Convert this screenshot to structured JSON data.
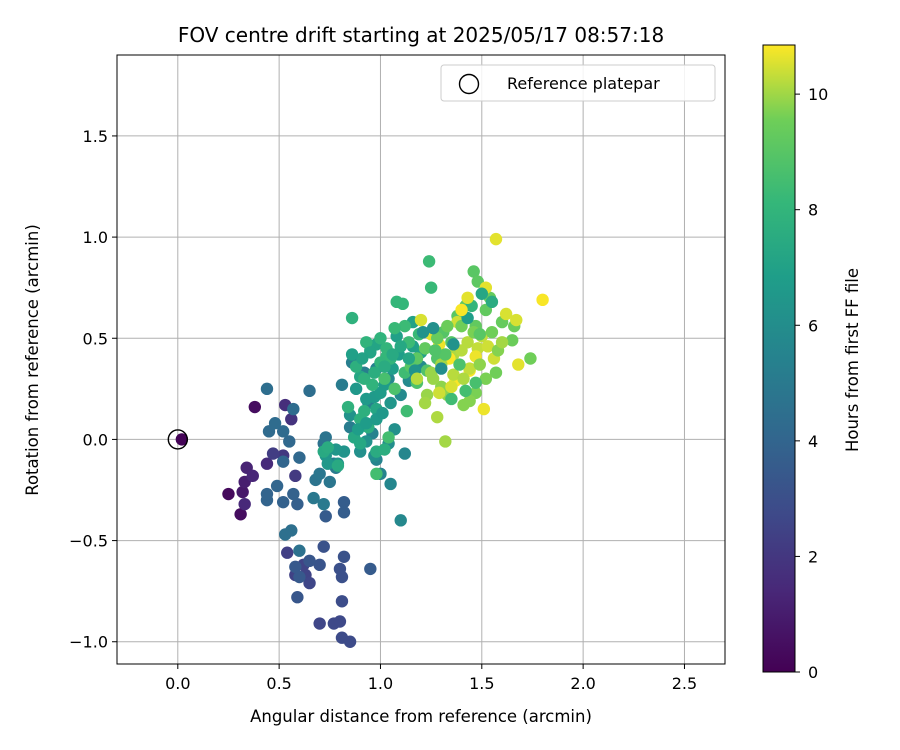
{
  "chart_data": {
    "type": "scatter",
    "title": "FOV centre drift starting at 2025/05/17 08:57:18",
    "xlabel": "Angular distance from reference (arcmin)",
    "ylabel": "Rotation from reference (arcmin)",
    "xlim": [
      -0.3,
      2.7
    ],
    "ylim": [
      -1.11,
      1.9
    ],
    "xticks": [
      "0.0",
      "0.5",
      "1.0",
      "1.5",
      "2.0",
      "2.5"
    ],
    "xtick_values": [
      0,
      0.5,
      1.0,
      1.5,
      2.0,
      2.5
    ],
    "yticks": [
      "−1.0",
      "−0.5",
      "0.0",
      "0.5",
      "1.0",
      "1.5"
    ],
    "ytick_values": [
      -1.0,
      -0.5,
      0.0,
      0.5,
      1.0,
      1.5
    ],
    "grid": true,
    "legend": {
      "position": "top-right",
      "entries": [
        "Reference platepar"
      ]
    },
    "reference_point": {
      "x": 0.0,
      "y": 0.0
    },
    "colorbar": {
      "label": "Hours from first FF file",
      "range": [
        0,
        10.85
      ],
      "ticks": [
        "0",
        "2",
        "4",
        "6",
        "8",
        "10"
      ],
      "tick_values": [
        0,
        2,
        4,
        6,
        8,
        10
      ],
      "colormap": "viridis"
    },
    "points": [
      [
        0.02,
        0.0,
        0.1
      ],
      [
        0.38,
        0.16,
        0.4
      ],
      [
        0.25,
        -0.27,
        0.3
      ],
      [
        0.31,
        -0.37,
        0.4
      ],
      [
        0.32,
        -0.26,
        0.8
      ],
      [
        0.33,
        -0.21,
        1.0
      ],
      [
        0.34,
        -0.14,
        1.2
      ],
      [
        0.37,
        -0.18,
        1.3
      ],
      [
        0.44,
        -0.12,
        1.5
      ],
      [
        0.33,
        -0.32,
        1.4
      ],
      [
        0.53,
        0.17,
        1.6
      ],
      [
        0.56,
        0.1,
        1.8
      ],
      [
        0.52,
        -0.08,
        2.0
      ],
      [
        0.58,
        -0.18,
        2.1
      ],
      [
        0.47,
        -0.07,
        2.2
      ],
      [
        0.54,
        -0.56,
        2.3
      ],
      [
        0.58,
        -0.67,
        2.4
      ],
      [
        0.62,
        -0.62,
        2.5
      ],
      [
        0.63,
        -0.67,
        2.5
      ],
      [
        0.65,
        -0.71,
        2.6
      ],
      [
        0.7,
        -0.91,
        2.6
      ],
      [
        0.77,
        -0.91,
        2.7
      ],
      [
        0.8,
        -0.9,
        2.7
      ],
      [
        0.81,
        -0.98,
        2.8
      ],
      [
        0.85,
        -1.0,
        2.8
      ],
      [
        0.81,
        -0.8,
        2.9
      ],
      [
        0.81,
        -0.68,
        3.0
      ],
      [
        0.8,
        -0.64,
        3.0
      ],
      [
        0.82,
        -0.58,
        3.1
      ],
      [
        0.72,
        -0.53,
        3.1
      ],
      [
        0.7,
        -0.62,
        3.2
      ],
      [
        0.65,
        -0.6,
        3.3
      ],
      [
        0.59,
        -0.78,
        3.3
      ],
      [
        0.58,
        -0.63,
        3.4
      ],
      [
        0.6,
        -0.68,
        3.4
      ],
      [
        0.95,
        -0.64,
        3.5
      ],
      [
        0.73,
        -0.38,
        3.5
      ],
      [
        0.82,
        -0.36,
        3.6
      ],
      [
        0.82,
        -0.31,
        3.6
      ],
      [
        0.59,
        -0.32,
        3.7
      ],
      [
        0.57,
        -0.27,
        3.8
      ],
      [
        0.52,
        -0.31,
        3.8
      ],
      [
        0.44,
        -0.3,
        3.9
      ],
      [
        0.44,
        -0.27,
        3.9
      ],
      [
        0.49,
        -0.23,
        4.0
      ],
      [
        0.52,
        -0.11,
        4.0
      ],
      [
        0.55,
        -0.01,
        4.1
      ],
      [
        0.6,
        -0.09,
        4.1
      ],
      [
        0.52,
        0.04,
        4.2
      ],
      [
        0.45,
        0.04,
        4.2
      ],
      [
        0.48,
        0.08,
        4.3
      ],
      [
        0.57,
        0.15,
        4.3
      ],
      [
        0.65,
        0.24,
        4.4
      ],
      [
        0.44,
        0.25,
        4.4
      ],
      [
        0.53,
        -0.47,
        4.5
      ],
      [
        0.56,
        -0.45,
        4.5
      ],
      [
        0.6,
        -0.55,
        4.6
      ],
      [
        0.72,
        -0.02,
        4.6
      ],
      [
        0.73,
        0.01,
        4.7
      ],
      [
        0.68,
        -0.2,
        4.7
      ],
      [
        0.7,
        -0.17,
        4.8
      ],
      [
        0.75,
        -0.21,
        4.8
      ],
      [
        0.77,
        -0.12,
        4.9
      ],
      [
        0.67,
        -0.29,
        4.9
      ],
      [
        0.72,
        -0.32,
        5.0
      ],
      [
        0.78,
        -0.14,
        5.0
      ],
      [
        0.85,
        0.06,
        5.1
      ],
      [
        0.81,
        0.27,
        5.1
      ],
      [
        0.86,
        0.38,
        5.2
      ],
      [
        0.92,
        0.33,
        5.2
      ],
      [
        0.98,
        0.35,
        5.3
      ],
      [
        0.94,
        0.18,
        5.3
      ],
      [
        0.96,
        0.03,
        5.4
      ],
      [
        0.98,
        -0.1,
        5.5
      ],
      [
        1.0,
        -0.17,
        5.5
      ],
      [
        1.05,
        -0.22,
        5.6
      ],
      [
        1.12,
        -0.07,
        5.6
      ],
      [
        1.1,
        -0.4,
        5.7
      ],
      [
        1.04,
        0.3,
        5.7
      ],
      [
        1.1,
        0.22,
        5.8
      ],
      [
        1.14,
        0.29,
        5.8
      ],
      [
        1.15,
        0.31,
        5.9
      ],
      [
        1.2,
        0.36,
        5.9
      ],
      [
        0.97,
        -0.08,
        6.0
      ],
      [
        1.04,
        -0.02,
        6.0
      ],
      [
        1.07,
        0.05,
        6.1
      ],
      [
        0.9,
        -0.06,
        6.1
      ],
      [
        0.93,
        -0.01,
        6.2
      ],
      [
        0.85,
        0.12,
        6.2
      ],
      [
        0.82,
        -0.06,
        6.3
      ],
      [
        0.79,
        -0.12,
        6.3
      ],
      [
        0.78,
        -0.05,
        6.4
      ],
      [
        0.73,
        -0.08,
        6.4
      ],
      [
        0.74,
        -0.12,
        6.5
      ],
      [
        0.88,
        0.25,
        6.5
      ],
      [
        0.93,
        0.2,
        6.6
      ],
      [
        0.97,
        0.21,
        6.6
      ],
      [
        1.0,
        0.23,
        6.7
      ],
      [
        1.02,
        0.27,
        6.7
      ],
      [
        1.06,
        0.35,
        6.8
      ],
      [
        1.09,
        0.42,
        6.8
      ],
      [
        1.08,
        0.51,
        6.9
      ],
      [
        1.16,
        0.46,
        6.9
      ],
      [
        1.2,
        0.43,
        7.0
      ],
      [
        1.16,
        0.58,
        7.0
      ],
      [
        0.95,
        0.44,
        7.1
      ],
      [
        0.98,
        0.47,
        7.1
      ],
      [
        0.9,
        0.31,
        7.2
      ],
      [
        0.98,
        0.15,
        7.2
      ],
      [
        0.87,
        0.01,
        7.3
      ],
      [
        0.9,
        -0.02,
        7.3
      ],
      [
        0.79,
        -0.13,
        7.4
      ],
      [
        0.72,
        -0.06,
        7.4
      ],
      [
        0.74,
        -0.04,
        7.5
      ],
      [
        0.98,
        -0.06,
        7.5
      ],
      [
        1.02,
        -0.05,
        7.6
      ],
      [
        0.94,
        0.06,
        7.6
      ],
      [
        0.92,
        0.14,
        7.7
      ],
      [
        0.9,
        0.1,
        7.7
      ],
      [
        0.84,
        0.16,
        7.8
      ],
      [
        0.86,
        0.6,
        7.8
      ],
      [
        0.93,
        0.48,
        7.9
      ],
      [
        1.0,
        0.5,
        7.9
      ],
      [
        1.03,
        0.45,
        8.0
      ],
      [
        1.05,
        0.4,
        8.0
      ],
      [
        1.08,
        0.68,
        8.1
      ],
      [
        1.11,
        0.67,
        8.1
      ],
      [
        1.19,
        0.52,
        8.2
      ],
      [
        1.25,
        0.75,
        8.2
      ],
      [
        1.24,
        0.88,
        8.3
      ],
      [
        1.14,
        0.48,
        8.3
      ],
      [
        1.12,
        0.33,
        8.4
      ],
      [
        1.13,
        0.14,
        8.4
      ],
      [
        1.04,
        0.01,
        8.5
      ],
      [
        0.98,
        -0.17,
        8.5
      ],
      [
        1.02,
        0.3,
        8.6
      ],
      [
        1.07,
        0.25,
        8.7
      ],
      [
        1.18,
        0.28,
        8.7
      ],
      [
        1.23,
        0.34,
        8.8
      ],
      [
        1.28,
        0.4,
        8.8
      ],
      [
        1.31,
        0.53,
        8.9
      ],
      [
        1.35,
        0.48,
        8.9
      ],
      [
        1.38,
        0.61,
        9.0
      ],
      [
        1.46,
        0.83,
        9.0
      ],
      [
        1.48,
        0.78,
        9.1
      ],
      [
        1.42,
        0.66,
        9.1
      ],
      [
        1.47,
        0.56,
        9.2
      ],
      [
        1.52,
        0.64,
        9.2
      ],
      [
        1.54,
        0.7,
        9.3
      ],
      [
        1.6,
        0.58,
        9.3
      ],
      [
        1.65,
        0.49,
        9.4
      ],
      [
        1.66,
        0.56,
        9.4
      ],
      [
        1.74,
        0.4,
        9.5
      ],
      [
        1.57,
        0.33,
        9.5
      ],
      [
        1.52,
        0.3,
        9.6
      ],
      [
        1.47,
        0.23,
        9.6
      ],
      [
        1.44,
        0.19,
        9.7
      ],
      [
        1.41,
        0.17,
        9.7
      ],
      [
        1.33,
        0.22,
        9.8
      ],
      [
        1.3,
        0.26,
        9.8
      ],
      [
        1.26,
        0.3,
        9.9
      ],
      [
        1.23,
        0.22,
        9.9
      ],
      [
        1.22,
        0.18,
        10.0
      ],
      [
        1.32,
        -0.01,
        10.0
      ],
      [
        1.28,
        0.11,
        10.1
      ],
      [
        1.36,
        0.42,
        10.1
      ],
      [
        1.4,
        0.44,
        10.2
      ],
      [
        1.43,
        0.48,
        10.2
      ],
      [
        1.48,
        0.45,
        10.3
      ],
      [
        1.5,
        0.51,
        10.3
      ],
      [
        1.53,
        0.46,
        10.4
      ],
      [
        1.56,
        0.4,
        10.4
      ],
      [
        1.62,
        0.62,
        10.5
      ],
      [
        1.67,
        0.59,
        10.5
      ],
      [
        1.57,
        0.99,
        10.6
      ],
      [
        1.52,
        0.75,
        10.6
      ],
      [
        1.51,
        0.15,
        10.7
      ],
      [
        1.47,
        0.41,
        10.7
      ],
      [
        1.44,
        0.34,
        10.8
      ],
      [
        1.37,
        0.29,
        10.8
      ],
      [
        1.34,
        0.4,
        10.8
      ],
      [
        1.29,
        0.47,
        10.7
      ],
      [
        1.25,
        0.52,
        10.6
      ],
      [
        1.2,
        0.59,
        10.5
      ],
      [
        1.8,
        0.69,
        10.8
      ],
      [
        1.68,
        0.37,
        10.6
      ],
      [
        1.38,
        0.58,
        10.4
      ],
      [
        1.44,
        0.35,
        10.3
      ],
      [
        1.36,
        0.32,
        10.2
      ],
      [
        1.41,
        0.3,
        10.1
      ],
      [
        1.3,
        0.37,
        10.0
      ],
      [
        1.25,
        0.33,
        9.9
      ],
      [
        1.49,
        0.37,
        9.8
      ],
      [
        1.58,
        0.44,
        9.7
      ],
      [
        1.46,
        0.53,
        9.6
      ],
      [
        1.4,
        0.56,
        9.5
      ],
      [
        1.33,
        0.56,
        9.4
      ],
      [
        1.28,
        0.5,
        9.3
      ],
      [
        1.22,
        0.45,
        9.2
      ],
      [
        1.18,
        0.4,
        9.1
      ],
      [
        1.15,
        0.36,
        9.0
      ],
      [
        1.32,
        0.42,
        8.9
      ],
      [
        1.27,
        0.44,
        8.8
      ],
      [
        1.39,
        0.37,
        8.7
      ],
      [
        1.47,
        0.28,
        8.6
      ],
      [
        1.42,
        0.24,
        8.5
      ],
      [
        1.35,
        0.2,
        8.4
      ],
      [
        1.12,
        0.56,
        8.3
      ],
      [
        1.07,
        0.55,
        8.2
      ],
      [
        1.03,
        0.41,
        8.1
      ],
      [
        1.0,
        0.38,
        8.0
      ],
      [
        0.96,
        0.27,
        7.9
      ],
      [
        0.92,
        0.3,
        7.8
      ],
      [
        0.88,
        0.36,
        7.7
      ],
      [
        0.97,
        0.33,
        7.6
      ],
      [
        1.02,
        0.36,
        7.5
      ],
      [
        1.06,
        0.42,
        7.4
      ],
      [
        1.1,
        0.46,
        7.3
      ],
      [
        1.14,
        0.4,
        7.2
      ],
      [
        0.95,
        0.43,
        7.1
      ],
      [
        0.91,
        0.4,
        7.0
      ],
      [
        0.86,
        0.42,
        6.9
      ],
      [
        0.89,
        0.05,
        6.8
      ],
      [
        0.93,
        0.08,
        6.7
      ],
      [
        0.98,
        0.1,
        6.6
      ],
      [
        1.01,
        0.13,
        6.5
      ],
      [
        1.05,
        0.18,
        6.4
      ],
      [
        1.17,
        0.34,
        6.3
      ],
      [
        1.21,
        0.53,
        6.2
      ],
      [
        1.26,
        0.55,
        6.1
      ],
      [
        1.3,
        0.35,
        6.0
      ],
      [
        1.36,
        0.47,
        6.2
      ],
      [
        1.43,
        0.6,
        6.8
      ],
      [
        1.5,
        0.72,
        7.2
      ],
      [
        1.55,
        0.68,
        7.5
      ],
      [
        1.45,
        0.66,
        8.0
      ],
      [
        1.49,
        0.52,
        9.0
      ],
      [
        1.55,
        0.53,
        9.5
      ],
      [
        1.6,
        0.48,
        10.0
      ],
      [
        1.35,
        0.26,
        10.5
      ],
      [
        1.4,
        0.64,
        10.8
      ],
      [
        1.43,
        0.7,
        10.6
      ],
      [
        1.29,
        0.23,
        10.4
      ],
      [
        1.18,
        0.3,
        10.2
      ]
    ]
  }
}
